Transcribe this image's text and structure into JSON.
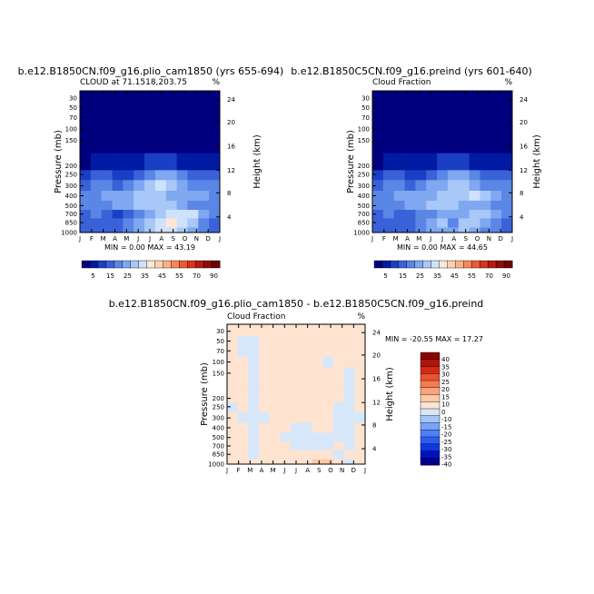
{
  "colors": {
    "levels": [
      "#00007f",
      "#001aa3",
      "#1a3fc4",
      "#3a62d8",
      "#5a86e6",
      "#7fa8f0",
      "#a8c8f7",
      "#cfe2fb",
      "#ffe7d6",
      "#fdd0b2",
      "#fbb08a",
      "#f7865d",
      "#ec5a37",
      "#d8331f",
      "#b81a10",
      "#8f0c06",
      "#6a0503"
    ],
    "diff_levels": [
      "#00008f",
      "#0010c0",
      "#1038e0",
      "#2c5cf0",
      "#4e80f4",
      "#78a3f7",
      "#a4c5f8",
      "#d6e7fc",
      "#fde3d0",
      "#fcc8a8",
      "#f9a47c",
      "#f57b50",
      "#ea5230",
      "#d22a16",
      "#b0140a",
      "#8a0505"
    ]
  },
  "chart_data": [
    {
      "type": "heatmap",
      "title": "b.e12.B1850CN.f09_g16.plio_cam1850 (yrs 655-694)",
      "subtitle_left": "CLOUD at 71.1518,203.75",
      "subtitle_right": "%",
      "ylabel": "Pressure (mb)",
      "ylabel_right": "Height (km)",
      "x_tick_labels": [
        "J",
        "F",
        "M",
        "A",
        "M",
        "J",
        "J",
        "A",
        "S",
        "O",
        "N",
        "D",
        "J"
      ],
      "y_tick_labels": [
        "30",
        "50",
        "70",
        "100",
        "150",
        "200",
        "250",
        "300",
        "400",
        "500",
        "700",
        "850",
        "1000"
      ],
      "y_right_tick_labels": [
        "24",
        "20",
        "16",
        "12",
        "8",
        "4"
      ],
      "min_max_text": "MIN =    0.00 MAX =   43.19",
      "colorbar_labels": [
        "5",
        "15",
        "25",
        "35",
        "45",
        "55",
        "70",
        "90"
      ],
      "grid": [
        [
          0,
          0,
          0,
          0,
          0,
          0,
          0,
          0,
          0,
          0,
          0,
          0,
          0
        ],
        [
          0,
          0,
          0,
          0,
          0,
          0,
          0,
          0,
          0,
          0,
          0,
          0,
          0
        ],
        [
          0,
          0,
          0,
          0,
          0,
          0,
          0,
          0,
          0,
          0,
          0,
          0,
          0
        ],
        [
          0,
          0,
          0,
          0,
          0,
          0,
          0,
          0,
          0,
          0,
          0,
          0,
          0
        ],
        [
          0,
          0,
          0,
          0,
          0,
          0,
          0,
          0,
          0,
          0,
          0,
          0,
          0
        ],
        [
          0,
          1,
          1,
          1,
          1,
          1,
          2,
          2,
          2,
          1,
          1,
          1,
          1
        ],
        [
          2,
          3,
          3,
          2,
          2,
          3,
          4,
          5,
          5,
          4,
          3,
          3,
          3
        ],
        [
          3,
          4,
          4,
          3,
          4,
          5,
          6,
          7,
          6,
          5,
          4,
          4,
          4
        ],
        [
          4,
          4,
          5,
          5,
          5,
          6,
          6,
          6,
          5,
          5,
          5,
          5,
          4
        ],
        [
          4,
          4,
          4,
          5,
          5,
          6,
          6,
          6,
          6,
          5,
          4,
          4,
          4
        ],
        [
          3,
          4,
          3,
          2,
          3,
          4,
          5,
          6,
          7,
          7,
          7,
          5,
          4
        ],
        [
          3,
          3,
          3,
          3,
          4,
          5,
          6,
          7,
          8,
          7,
          6,
          4,
          3
        ],
        [
          3,
          3,
          3,
          3,
          4,
          5,
          6,
          7,
          7,
          6,
          5,
          4,
          3
        ]
      ]
    },
    {
      "type": "heatmap",
      "title": "b.e12.B1850C5CN.f09_g16.preind (yrs 601-640)",
      "subtitle_left": "Cloud Fraction",
      "subtitle_right": "%",
      "ylabel": "Pressure (mb)",
      "ylabel_right": "Height (km)",
      "x_tick_labels": [
        "J",
        "F",
        "M",
        "A",
        "M",
        "J",
        "J",
        "A",
        "S",
        "O",
        "N",
        "D",
        "J"
      ],
      "y_tick_labels": [
        "30",
        "50",
        "70",
        "100",
        "150",
        "200",
        "250",
        "300",
        "400",
        "500",
        "700",
        "850",
        "1000"
      ],
      "y_right_tick_labels": [
        "24",
        "20",
        "16",
        "12",
        "8",
        "4"
      ],
      "min_max_text": "MIN =    0.00 MAX =   44.65",
      "colorbar_labels": [
        "5",
        "15",
        "25",
        "35",
        "45",
        "55",
        "70",
        "90"
      ],
      "grid": [
        [
          0,
          0,
          0,
          0,
          0,
          0,
          0,
          0,
          0,
          0,
          0,
          0,
          0
        ],
        [
          0,
          0,
          0,
          0,
          0,
          0,
          0,
          0,
          0,
          0,
          0,
          0,
          0
        ],
        [
          0,
          0,
          0,
          0,
          0,
          0,
          0,
          0,
          0,
          0,
          0,
          0,
          0
        ],
        [
          0,
          0,
          0,
          0,
          0,
          0,
          0,
          0,
          0,
          0,
          0,
          0,
          0
        ],
        [
          0,
          0,
          0,
          0,
          0,
          0,
          0,
          0,
          0,
          0,
          0,
          0,
          0
        ],
        [
          0,
          1,
          1,
          1,
          1,
          1,
          2,
          2,
          2,
          1,
          1,
          1,
          1
        ],
        [
          2,
          3,
          3,
          2,
          2,
          3,
          4,
          5,
          5,
          4,
          3,
          3,
          3
        ],
        [
          3,
          4,
          4,
          3,
          4,
          5,
          5,
          6,
          6,
          5,
          4,
          4,
          4
        ],
        [
          4,
          4,
          5,
          5,
          5,
          5,
          6,
          6,
          6,
          7,
          6,
          5,
          4
        ],
        [
          4,
          4,
          4,
          5,
          5,
          6,
          6,
          6,
          5,
          5,
          5,
          4,
          4
        ],
        [
          3,
          4,
          3,
          3,
          4,
          4,
          5,
          5,
          5,
          6,
          6,
          5,
          4
        ],
        [
          3,
          3,
          3,
          3,
          4,
          5,
          6,
          4,
          6,
          6,
          5,
          4,
          3
        ],
        [
          3,
          3,
          3,
          3,
          4,
          5,
          5,
          5,
          6,
          5,
          4,
          4,
          3
        ]
      ]
    },
    {
      "type": "heatmap",
      "title": "b.e12.B1850CN.f09_g16.plio_cam1850 - b.e12.B1850C5CN.f09_g16.preind",
      "subtitle_left": "Cloud Fraction",
      "subtitle_right": "%",
      "ylabel": "Pressure (mb)",
      "ylabel_right": "Height (km)",
      "x_tick_labels": [
        "J",
        "F",
        "M",
        "A",
        "M",
        "J",
        "J",
        "A",
        "S",
        "O",
        "N",
        "D",
        "J"
      ],
      "y_tick_labels": [
        "30",
        "50",
        "70",
        "100",
        "150",
        "200",
        "250",
        "300",
        "400",
        "500",
        "700",
        "850",
        "1000"
      ],
      "y_right_tick_labels": [
        "24",
        "20",
        "16",
        "12",
        "8",
        "4"
      ],
      "min_max_text": "MIN = -20.55 MAX =  17.27",
      "colorbar_labels": [
        "40",
        "35",
        "30",
        "25",
        "20",
        "15",
        "10",
        "0",
        "-10",
        "-15",
        "-20",
        "-25",
        "-30",
        "-35",
        "-40"
      ],
      "grid": [
        [
          8,
          8,
          8,
          8,
          8,
          8,
          8,
          8,
          8,
          8,
          8,
          8,
          8
        ],
        [
          8,
          7,
          7,
          8,
          8,
          8,
          8,
          8,
          8,
          8,
          8,
          8,
          8
        ],
        [
          8,
          7,
          7,
          8,
          8,
          8,
          8,
          8,
          8,
          8,
          8,
          8,
          8
        ],
        [
          8,
          8,
          7,
          8,
          8,
          8,
          8,
          8,
          8,
          7,
          8,
          8,
          8
        ],
        [
          8,
          8,
          7,
          8,
          8,
          8,
          8,
          8,
          8,
          8,
          8,
          7,
          8
        ],
        [
          8,
          8,
          7,
          8,
          8,
          8,
          8,
          8,
          8,
          8,
          8,
          7,
          8
        ],
        [
          7,
          8,
          7,
          8,
          8,
          8,
          8,
          8,
          8,
          8,
          7,
          7,
          8
        ],
        [
          8,
          7,
          7,
          7,
          8,
          8,
          8,
          8,
          8,
          8,
          7,
          7,
          7
        ],
        [
          8,
          8,
          7,
          8,
          8,
          8,
          7,
          7,
          8,
          8,
          7,
          7,
          8
        ],
        [
          8,
          8,
          7,
          8,
          8,
          7,
          7,
          7,
          7,
          7,
          7,
          7,
          8
        ],
        [
          8,
          8,
          7,
          8,
          8,
          8,
          7,
          7,
          7,
          7,
          8,
          7,
          8
        ],
        [
          8,
          8,
          7,
          8,
          8,
          8,
          8,
          8,
          8,
          8,
          7,
          8,
          8
        ],
        [
          8,
          8,
          8,
          8,
          8,
          8,
          8,
          8,
          9,
          9,
          8,
          7,
          8
        ]
      ]
    }
  ]
}
